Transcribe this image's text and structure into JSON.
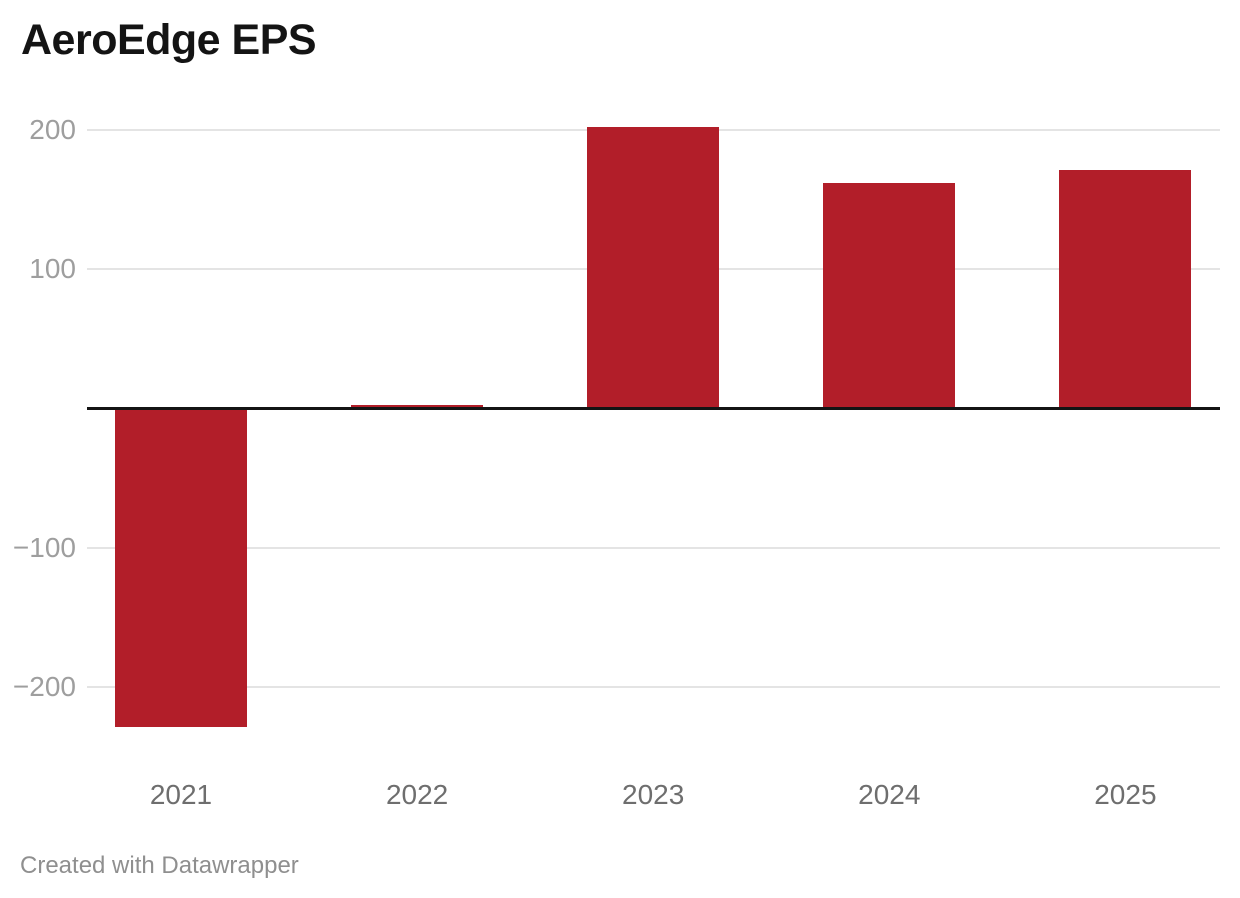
{
  "header": {
    "title": "AeroEdge EPS"
  },
  "footer": {
    "attribution": "Created with Datawrapper"
  },
  "colors": {
    "background": "#ffffff",
    "bar": "#b21e29",
    "gridline": "#e4e4e4",
    "zero_line": "#141414",
    "title_text": "#141414",
    "y_label_text": "#9e9e9e",
    "x_label_text": "#6e6e6e",
    "attribution_text": "#8f8f8f"
  },
  "chart_data": {
    "type": "bar",
    "title": "AeroEdge EPS",
    "series_name": "EPS",
    "categories": [
      "2021",
      "2022",
      "2023",
      "2024",
      "2025"
    ],
    "values": [
      -229,
      2.4,
      202,
      162,
      171
    ],
    "xlabel": "",
    "ylabel": "",
    "y_ticks": [
      200,
      100,
      -100,
      -200
    ],
    "ylim": [
      -245,
      215
    ],
    "grid": true,
    "zero_baseline": true,
    "legend": "none",
    "bar_orientation": "vertical"
  }
}
